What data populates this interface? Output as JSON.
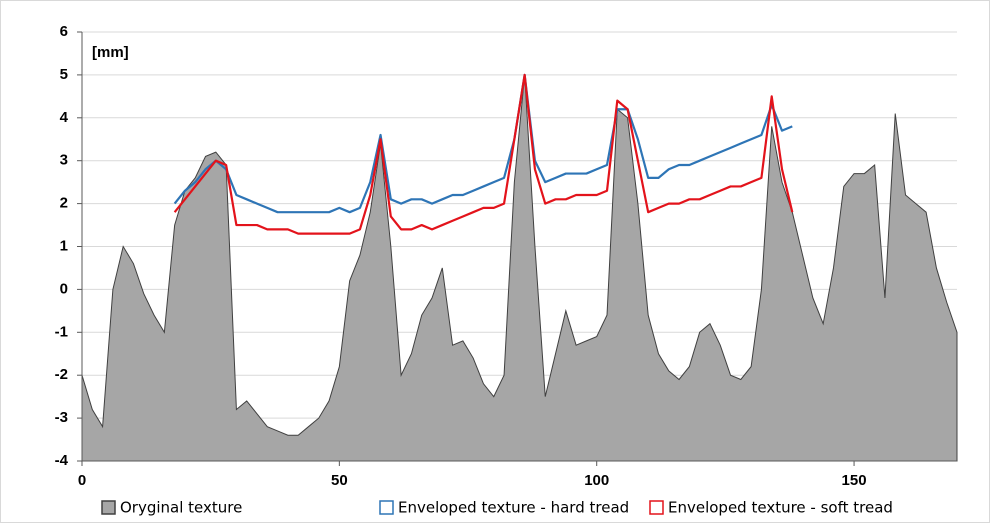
{
  "chart_data": {
    "type": "line",
    "annotation": "[mm]",
    "x": [
      0,
      2,
      4,
      6,
      8,
      10,
      12,
      14,
      16,
      18,
      20,
      22,
      24,
      26,
      28,
      30,
      32,
      34,
      36,
      38,
      40,
      42,
      44,
      46,
      48,
      50,
      52,
      54,
      56,
      58,
      60,
      62,
      64,
      66,
      68,
      70,
      72,
      74,
      76,
      78,
      80,
      82,
      84,
      86,
      88,
      90,
      92,
      94,
      96,
      98,
      100,
      102,
      104,
      106,
      108,
      110,
      112,
      114,
      116,
      118,
      120,
      122,
      124,
      126,
      128,
      130,
      132,
      134,
      136,
      138,
      140,
      142,
      144,
      146,
      148,
      150,
      152,
      154,
      156,
      158,
      160,
      162,
      164,
      166,
      168,
      170
    ],
    "series": [
      {
        "name": "Oryginal texture",
        "type": "area",
        "color": "#a6a6a6",
        "edge": "#404040",
        "values": [
          -2.0,
          -2.8,
          -3.2,
          0.0,
          1.0,
          0.6,
          -0.1,
          -0.6,
          -1.0,
          1.5,
          2.3,
          2.6,
          3.1,
          3.2,
          2.9,
          -2.8,
          -2.6,
          -2.9,
          -3.2,
          -3.3,
          -3.4,
          -3.4,
          -3.2,
          -3.0,
          -2.6,
          -1.8,
          0.2,
          0.8,
          1.8,
          3.4,
          1.0,
          -2.0,
          -1.5,
          -0.6,
          -0.2,
          0.5,
          -1.3,
          -1.2,
          -1.6,
          -2.2,
          -2.5,
          -2.0,
          2.5,
          5.0,
          1.0,
          -2.5,
          -1.5,
          -0.5,
          -1.3,
          -1.2,
          -1.1,
          -0.6,
          4.2,
          4.0,
          2.0,
          -0.6,
          -1.5,
          -1.9,
          -2.1,
          -1.8,
          -1.0,
          -0.8,
          -1.3,
          -2.0,
          -2.1,
          -1.8,
          0.0,
          3.8,
          2.5,
          1.8,
          0.8,
          -0.2,
          -0.8,
          0.5,
          2.4,
          2.7,
          2.7,
          2.9,
          -0.2,
          4.1,
          2.2,
          2.0,
          1.8,
          0.5,
          -0.3,
          -1.0
        ]
      },
      {
        "name": "Enveloped texture - hard tread",
        "type": "line",
        "color": "#2e75b6",
        "values": [
          null,
          null,
          null,
          null,
          null,
          null,
          null,
          null,
          null,
          2.0,
          2.3,
          2.5,
          2.8,
          3.0,
          2.8,
          2.2,
          2.1,
          2.0,
          1.9,
          1.8,
          1.8,
          1.8,
          1.8,
          1.8,
          1.8,
          1.9,
          1.8,
          1.9,
          2.5,
          3.6,
          2.1,
          2.0,
          2.1,
          2.1,
          2.0,
          2.1,
          2.2,
          2.2,
          2.3,
          2.4,
          2.5,
          2.6,
          3.5,
          5.0,
          3.0,
          2.5,
          2.6,
          2.7,
          2.7,
          2.7,
          2.8,
          2.9,
          4.2,
          4.2,
          3.5,
          2.6,
          2.6,
          2.8,
          2.9,
          2.9,
          3.0,
          3.1,
          3.2,
          3.3,
          3.4,
          3.5,
          3.6,
          4.3,
          3.7,
          3.8,
          null,
          null,
          null,
          null,
          null,
          null,
          null,
          null,
          null,
          null,
          null,
          null,
          null,
          null,
          null,
          null
        ]
      },
      {
        "name": "Enveloped texture - soft tread",
        "type": "line",
        "color": "#e3131b",
        "values": [
          null,
          null,
          null,
          null,
          null,
          null,
          null,
          null,
          null,
          1.8,
          2.1,
          2.4,
          2.7,
          3.0,
          2.9,
          1.5,
          1.5,
          1.5,
          1.4,
          1.4,
          1.4,
          1.3,
          1.3,
          1.3,
          1.3,
          1.3,
          1.3,
          1.4,
          2.2,
          3.5,
          1.7,
          1.4,
          1.4,
          1.5,
          1.4,
          1.5,
          1.6,
          1.7,
          1.8,
          1.9,
          1.9,
          2.0,
          3.5,
          5.0,
          2.8,
          2.0,
          2.1,
          2.1,
          2.2,
          2.2,
          2.2,
          2.3,
          4.4,
          4.2,
          3.0,
          1.8,
          1.9,
          2.0,
          2.0,
          2.1,
          2.1,
          2.2,
          2.3,
          2.4,
          2.4,
          2.5,
          2.6,
          4.5,
          2.8,
          1.8,
          null,
          null,
          null,
          null,
          null,
          null,
          null,
          null,
          null,
          null,
          null,
          null,
          null,
          null,
          null,
          null
        ]
      }
    ],
    "xlim": [
      0,
      170
    ],
    "xticks": [
      0,
      50,
      100,
      150
    ],
    "ylim": [
      -4,
      6
    ],
    "yticks": [
      -4,
      -3,
      -2,
      -1,
      0,
      1,
      2,
      3,
      4,
      5,
      6
    ],
    "grid": true,
    "legend": "bottom"
  }
}
